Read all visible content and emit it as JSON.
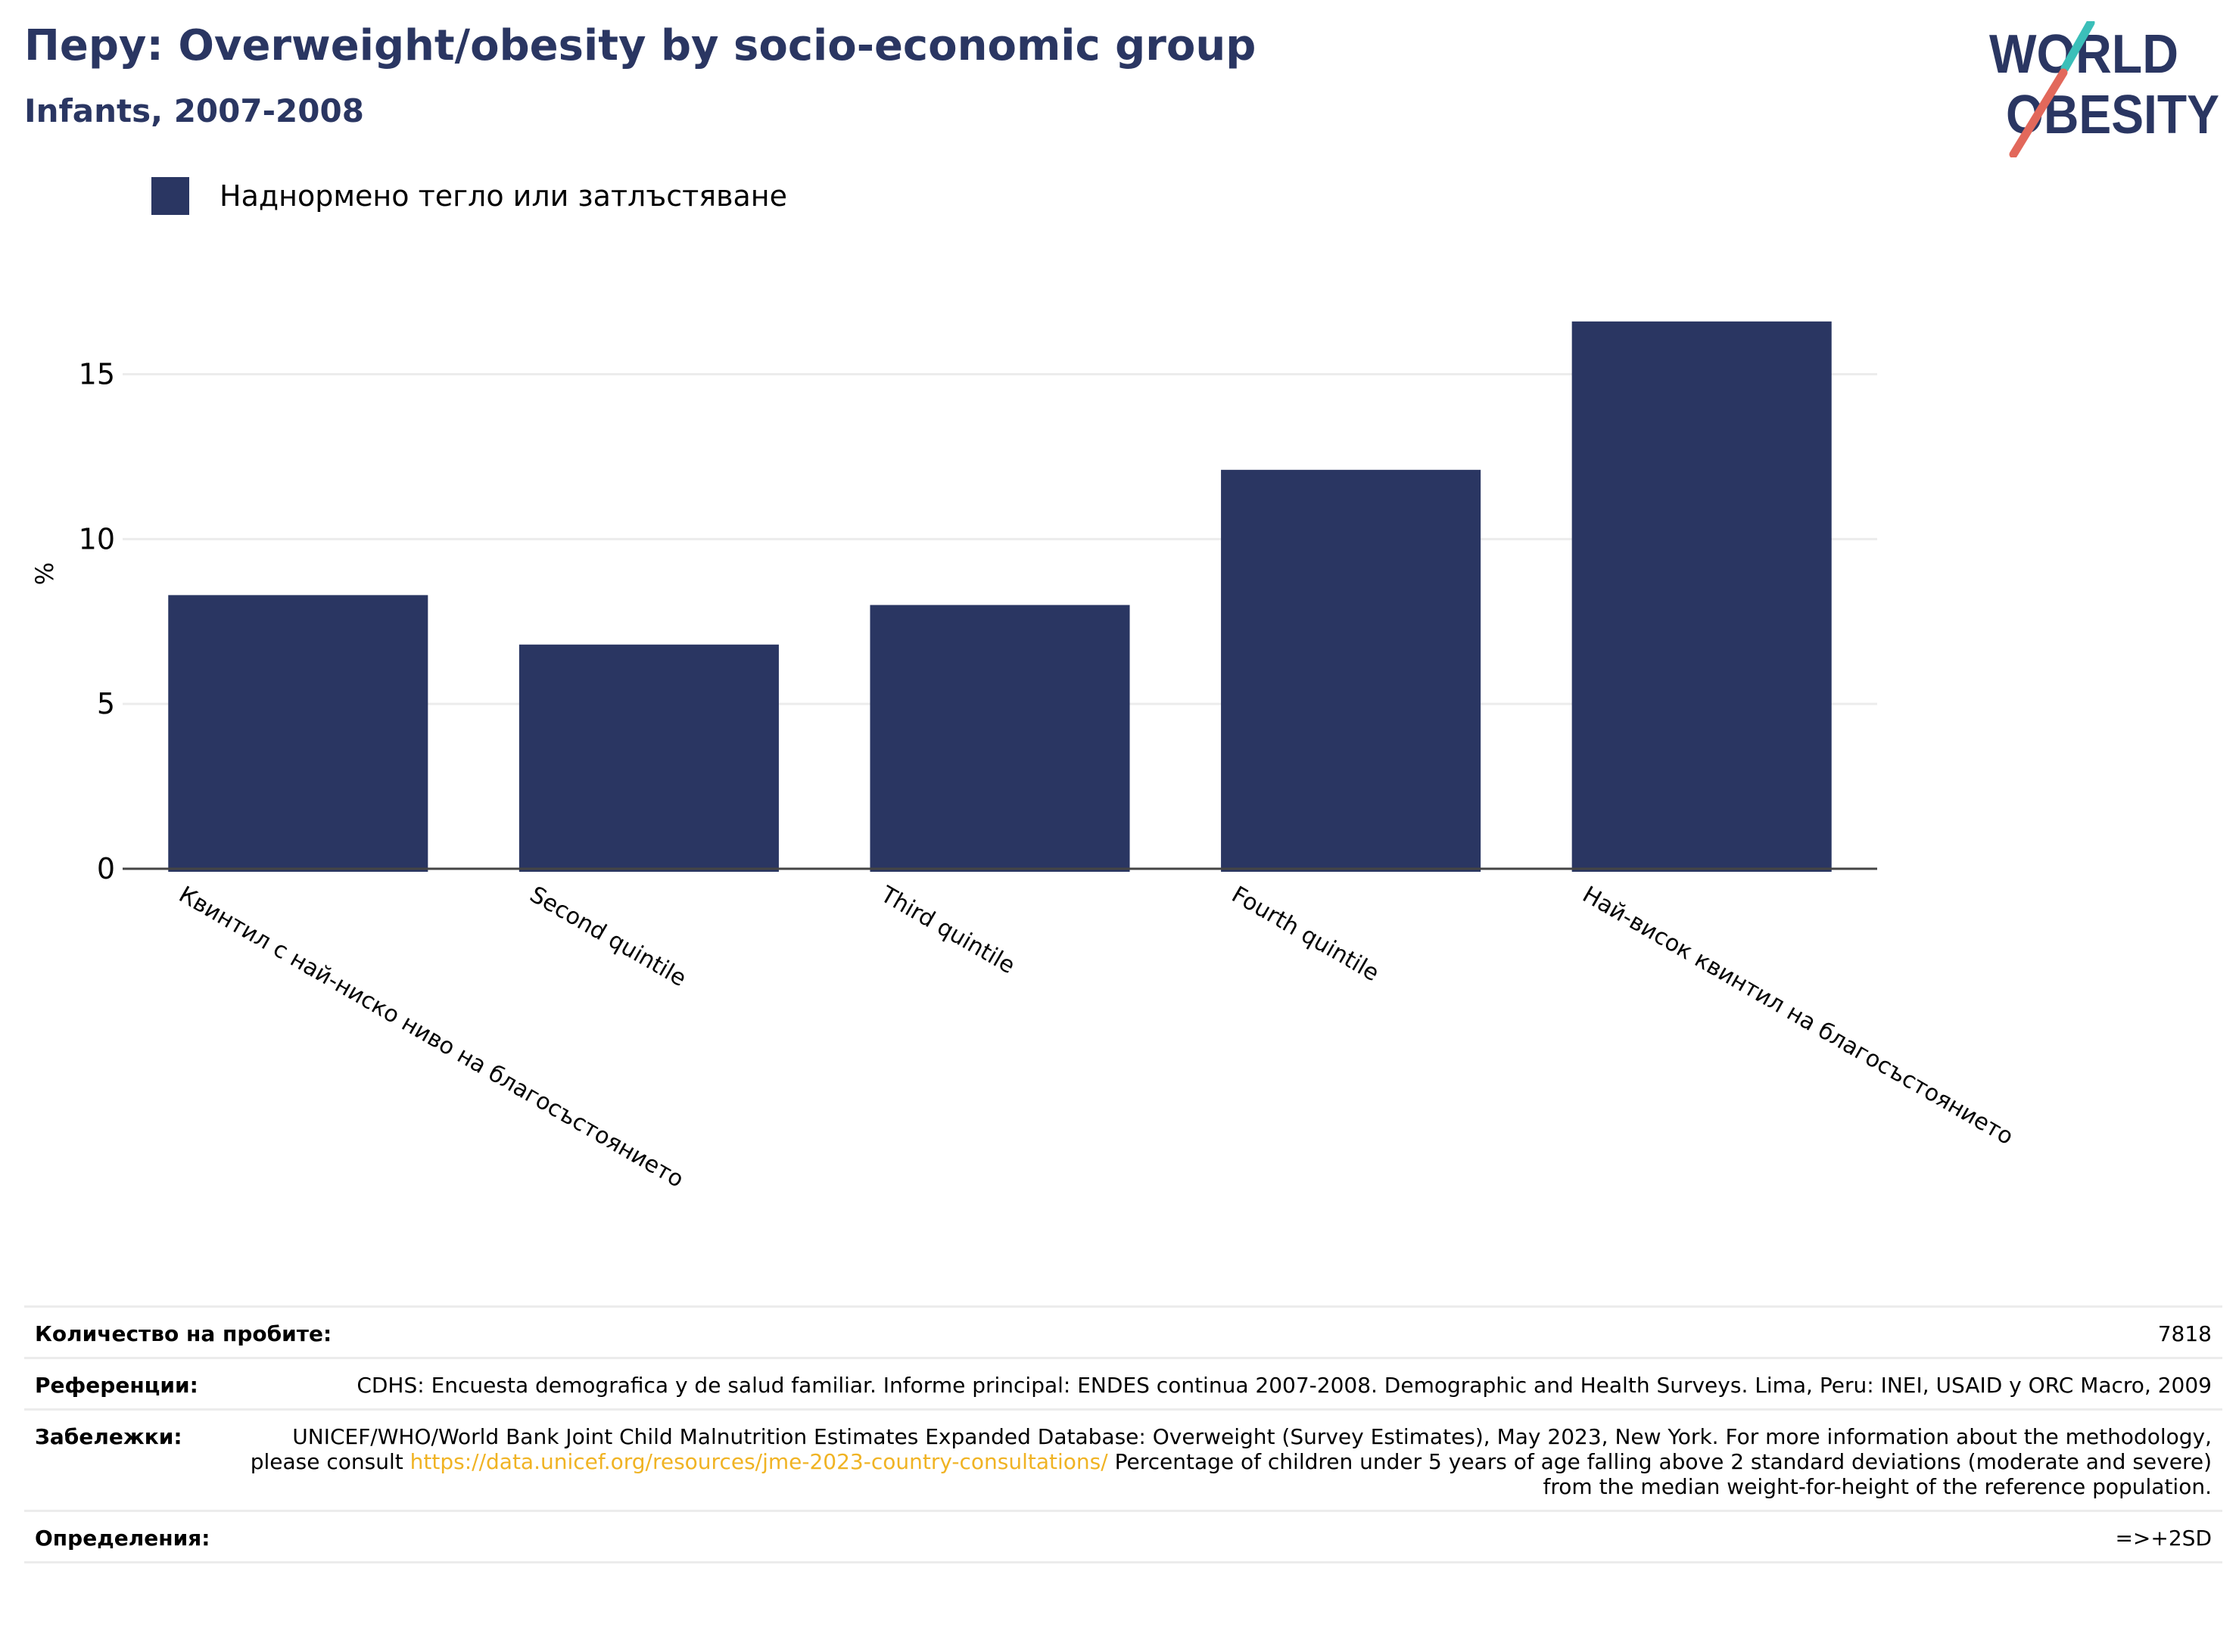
{
  "header": {
    "title": "Перу: Overweight/obesity by socio-economic group",
    "subtitle": "Infants, 2007-2008"
  },
  "logo": {
    "line1": "WORLD",
    "line2": "OBESITY",
    "colors": {
      "text": "#2a3662",
      "slash_teal": "#3bbfb9",
      "slash_red": "#e2685b"
    }
  },
  "chart_data": {
    "type": "bar",
    "categories": [
      "Квинтил с най-ниско ниво на благосъстоянието",
      "Second quintile",
      "Third quintile",
      "Fourth quintile",
      "Най-висок квинтил на благосъстоянието"
    ],
    "series": [
      {
        "name": "Наднормено тегло или затлъстяване",
        "color": "#2a3662",
        "values": [
          8.3,
          6.8,
          8.0,
          12.1,
          16.6
        ]
      }
    ],
    "ylabel": "%",
    "ylim": [
      0,
      18.5
    ],
    "yticks": [
      0,
      5,
      10,
      15
    ],
    "grid": true,
    "legend_position": "top-left"
  },
  "info": {
    "sample_size": {
      "label": "Количество на пробите:",
      "value": "7818"
    },
    "references": {
      "label": "Референции:",
      "value": "CDHS: Encuesta demografica y de salud familiar. Informe principal: ENDES continua 2007-2008. Demographic and Health Surveys. Lima, Peru: INEI, USAID y ORC Macro, 2009"
    },
    "notes": {
      "label": "Забележки:",
      "text_before": "UNICEF/WHO/World Bank Joint Child Malnutrition Estimates Expanded Database: Overweight (Survey Estimates), May 2023, New York. For more information about the methodology, please consult ",
      "link": "https://data.unicef.org/resources/jme-2023-country-consultations/",
      "text_after": " Percentage of children under 5 years of age falling above 2 standard deviations (moderate and severe) from the median weight-for-height of the reference population."
    },
    "definitions": {
      "label": "Определения:",
      "value": "=>+2SD"
    }
  }
}
